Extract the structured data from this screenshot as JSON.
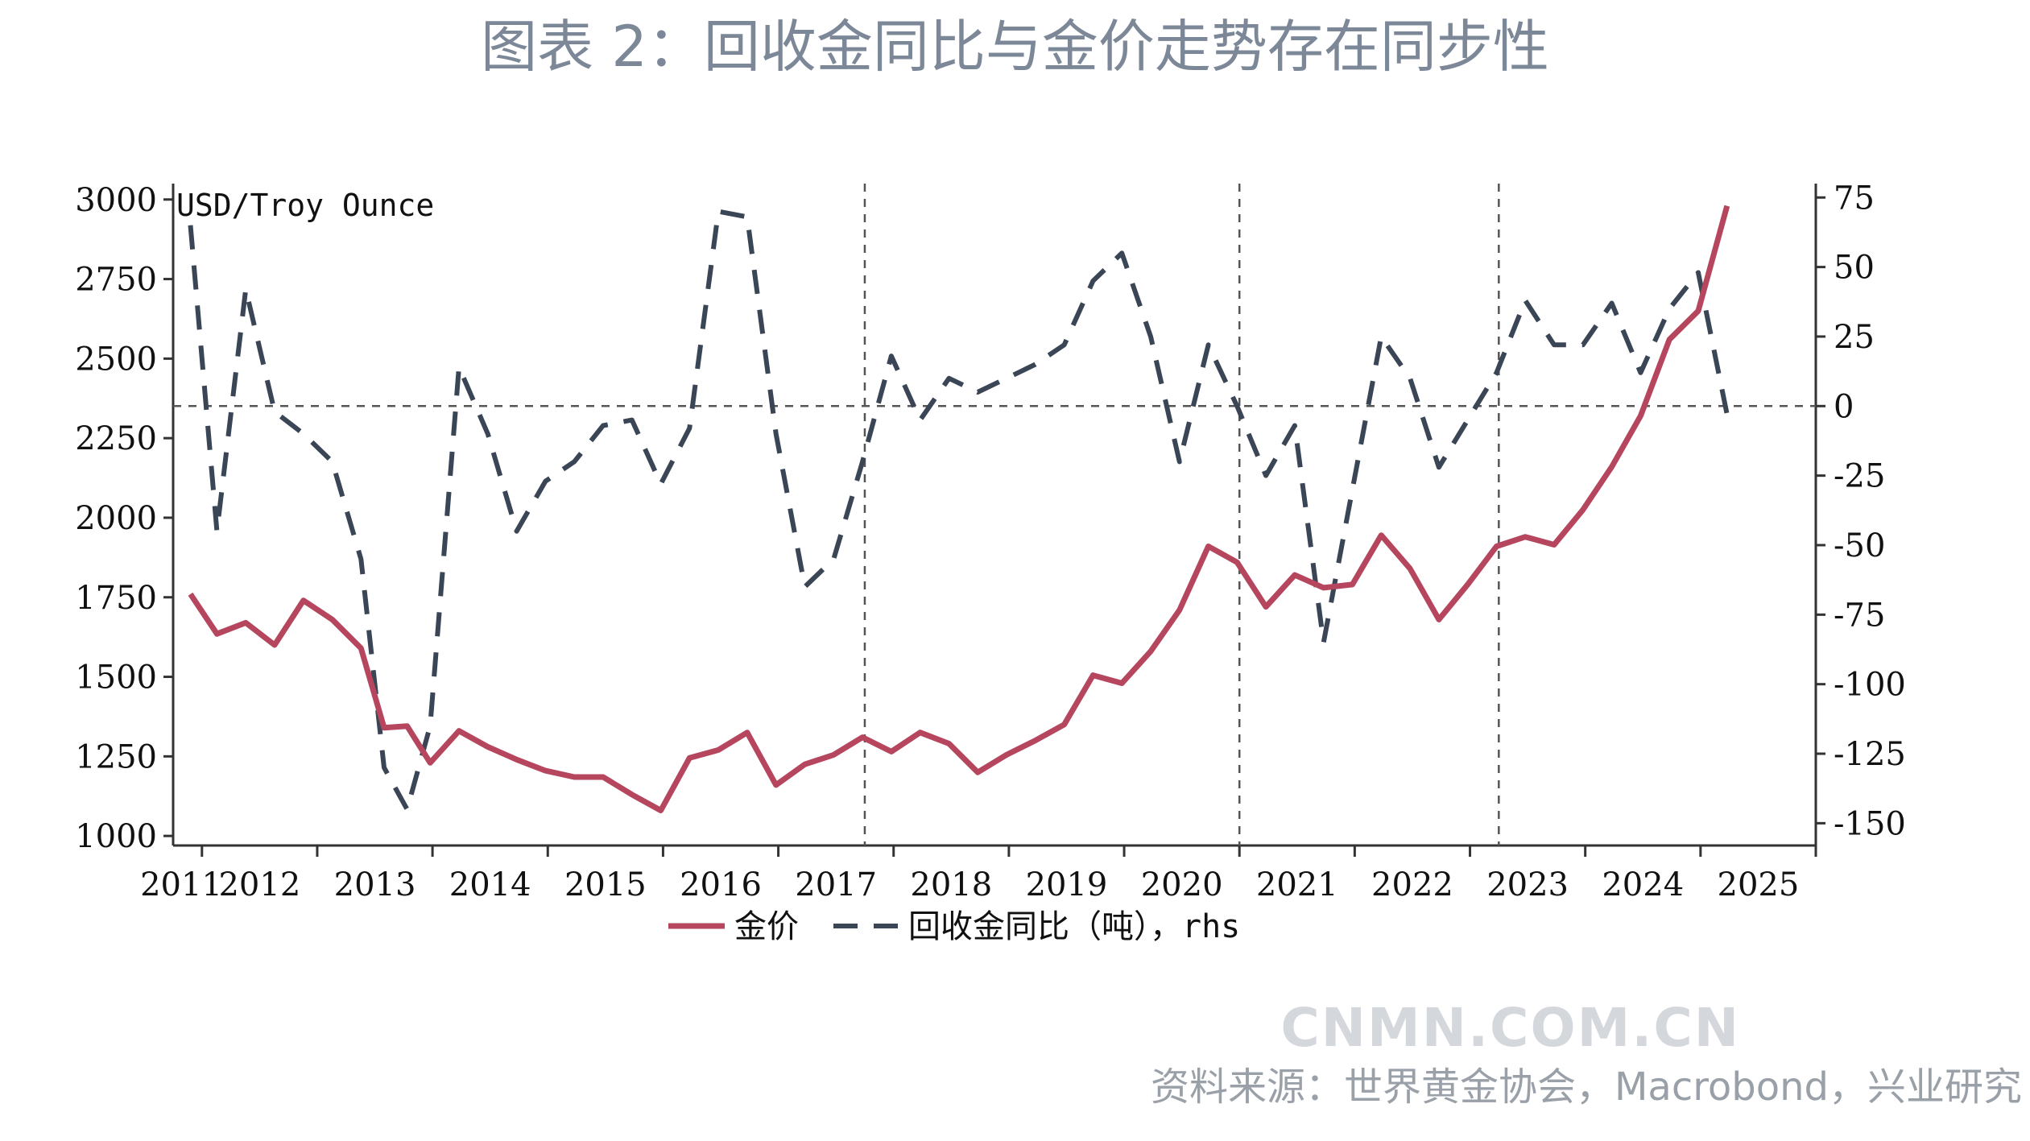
{
  "title": "图表 2：回收金同比与金价走势存在同步性",
  "source": "资料来源：世界黄金协会，Macrobond，兴业研究",
  "watermark": "CNMN.COM.CN",
  "colors": {
    "gold_price": "#b5465e",
    "recycling": "#3a4556",
    "axis": "#333333",
    "grid": "#555555"
  },
  "chart_data": {
    "type": "line",
    "title": "图表 2：回收金同比与金价走势存在同步性",
    "left_axis_unit": "USD/Troy Ounce",
    "x_range": [
      2010.75,
      2025.0
    ],
    "x_ticks": [
      "2011",
      "2012",
      "2013",
      "2014",
      "2015",
      "2016",
      "2017",
      "2018",
      "2019",
      "2020",
      "2021",
      "2022",
      "2023",
      "2024",
      "2025"
    ],
    "ylim_left": [
      970,
      3050
    ],
    "ylim_right": [
      -158,
      80
    ],
    "yticks_left": [
      1000,
      1250,
      1500,
      1750,
      2000,
      2250,
      2500,
      2750,
      3000
    ],
    "yticks_right": [
      -150,
      -125,
      -100,
      -75,
      -50,
      -25,
      0,
      25,
      50,
      75
    ],
    "zero_line": true,
    "vertical_dashed_lines": [
      2016.75,
      2020.0,
      2022.25
    ],
    "legend_placement": "bottom-center",
    "series": [
      {
        "name": "金价",
        "axis": "left",
        "style": "solid",
        "points": [
          [
            2010.9,
            1760
          ],
          [
            2011.13,
            1635
          ],
          [
            2011.38,
            1670
          ],
          [
            2011.63,
            1600
          ],
          [
            2011.88,
            1740
          ],
          [
            2012.13,
            1680
          ],
          [
            2012.38,
            1590
          ],
          [
            2012.58,
            1340
          ],
          [
            2012.78,
            1345
          ],
          [
            2012.98,
            1230
          ],
          [
            2013.23,
            1330
          ],
          [
            2013.48,
            1280
          ],
          [
            2013.73,
            1240
          ],
          [
            2013.98,
            1205
          ],
          [
            2014.23,
            1185
          ],
          [
            2014.48,
            1185
          ],
          [
            2014.73,
            1130
          ],
          [
            2014.98,
            1080
          ],
          [
            2015.23,
            1245
          ],
          [
            2015.48,
            1270
          ],
          [
            2015.73,
            1325
          ],
          [
            2015.98,
            1160
          ],
          [
            2016.23,
            1225
          ],
          [
            2016.48,
            1255
          ],
          [
            2016.73,
            1310
          ],
          [
            2016.98,
            1265
          ],
          [
            2017.23,
            1325
          ],
          [
            2017.48,
            1290
          ],
          [
            2017.73,
            1200
          ],
          [
            2017.98,
            1255
          ],
          [
            2018.23,
            1300
          ],
          [
            2018.48,
            1350
          ],
          [
            2018.73,
            1505
          ],
          [
            2018.98,
            1480
          ],
          [
            2019.23,
            1580
          ],
          [
            2019.48,
            1710
          ],
          [
            2019.73,
            1910
          ],
          [
            2019.98,
            1860
          ],
          [
            2020.23,
            1720
          ],
          [
            2020.48,
            1820
          ],
          [
            2020.73,
            1780
          ],
          [
            2020.98,
            1790
          ],
          [
            2021.23,
            1945
          ],
          [
            2021.48,
            1840
          ],
          [
            2021.73,
            1680
          ],
          [
            2021.98,
            1790
          ],
          [
            2022.23,
            1910
          ],
          [
            2022.48,
            1940
          ],
          [
            2022.73,
            1915
          ],
          [
            2022.98,
            2025
          ],
          [
            2023.23,
            2160
          ],
          [
            2023.48,
            2320
          ],
          [
            2023.73,
            2560
          ],
          [
            2023.98,
            2650
          ],
          [
            2024.23,
            2980
          ]
        ]
      },
      {
        "name": "回收金同比（吨），rhs",
        "axis": "right",
        "style": "dashed",
        "points": [
          [
            2010.9,
            65
          ],
          [
            2011.13,
            -45
          ],
          [
            2011.38,
            42
          ],
          [
            2011.63,
            -2
          ],
          [
            2011.88,
            -10
          ],
          [
            2012.13,
            -20
          ],
          [
            2012.38,
            -55
          ],
          [
            2012.58,
            -130
          ],
          [
            2012.78,
            -145
          ],
          [
            2012.98,
            -115
          ],
          [
            2013.23,
            14
          ],
          [
            2013.48,
            -10
          ],
          [
            2013.73,
            -45
          ],
          [
            2013.98,
            -27
          ],
          [
            2014.23,
            -20
          ],
          [
            2014.48,
            -7
          ],
          [
            2014.73,
            -5
          ],
          [
            2014.98,
            -28
          ],
          [
            2015.23,
            -8
          ],
          [
            2015.48,
            70
          ],
          [
            2015.73,
            68
          ],
          [
            2015.98,
            -10
          ],
          [
            2016.23,
            -65
          ],
          [
            2016.48,
            -55
          ],
          [
            2016.73,
            -20
          ],
          [
            2016.98,
            18
          ],
          [
            2017.23,
            -5
          ],
          [
            2017.48,
            10
          ],
          [
            2017.73,
            5
          ],
          [
            2017.98,
            10
          ],
          [
            2018.23,
            15
          ],
          [
            2018.48,
            22
          ],
          [
            2018.73,
            45
          ],
          [
            2018.98,
            55
          ],
          [
            2019.23,
            25
          ],
          [
            2019.48,
            -20
          ],
          [
            2019.73,
            22
          ],
          [
            2019.98,
            0
          ],
          [
            2020.23,
            -25
          ],
          [
            2020.48,
            -7
          ],
          [
            2020.73,
            -85
          ],
          [
            2020.98,
            -30
          ],
          [
            2021.23,
            25
          ],
          [
            2021.48,
            10
          ],
          [
            2021.73,
            -22
          ],
          [
            2021.98,
            -5
          ],
          [
            2022.23,
            12
          ],
          [
            2022.48,
            38
          ],
          [
            2022.73,
            22
          ],
          [
            2022.98,
            22
          ],
          [
            2023.23,
            37
          ],
          [
            2023.48,
            12
          ],
          [
            2023.73,
            35
          ],
          [
            2023.98,
            48
          ],
          [
            2024.23,
            -3
          ]
        ]
      }
    ]
  }
}
